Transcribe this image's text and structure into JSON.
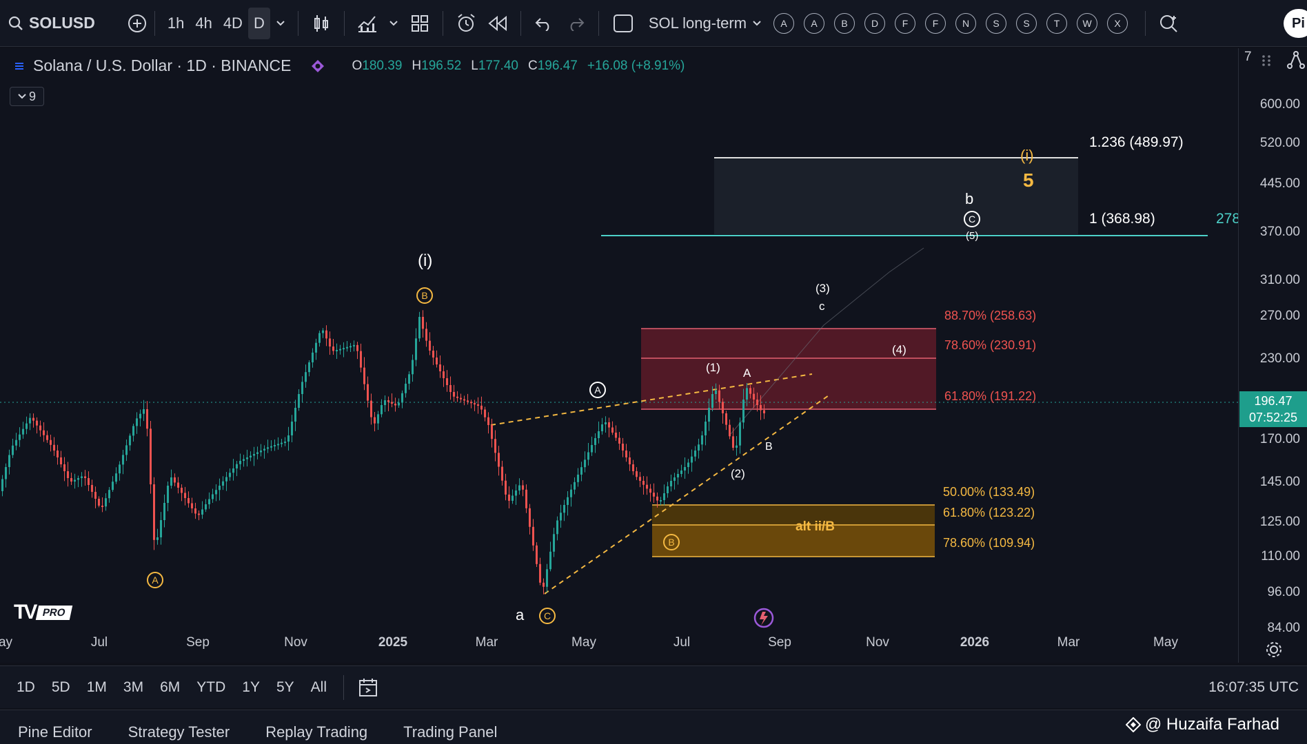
{
  "topbar": {
    "symbol": "SOLUSD",
    "timeframes": [
      "1h",
      "4h",
      "4D",
      "D"
    ],
    "active_timeframe": "D",
    "layout_name": "SOL long-term",
    "alert_letters": [
      "A",
      "A",
      "B",
      "D",
      "F",
      "F",
      "N",
      "S",
      "S",
      "T",
      "W",
      "X"
    ],
    "profile_initials": "Pi"
  },
  "legend": {
    "title": "Solana / U.S. Dollar · 1D · BINANCE",
    "open_label": "O",
    "open": "180.39",
    "high_label": "H",
    "high": "196.52",
    "low_label": "L",
    "low": "177.40",
    "close_label": "C",
    "close": "196.47",
    "change": "+16.08 (+8.91%)",
    "indicators_count": "9"
  },
  "price_scale": {
    "top_partial": "7",
    "labels": [
      "600.00",
      "520.00",
      "445.00",
      "370.00",
      "310.00",
      "270.00",
      "230.00",
      "170.00",
      "145.00",
      "125.00",
      "110.00",
      "96.00",
      "84.00"
    ],
    "current_price": "196.47",
    "countdown": "07:52:25"
  },
  "time_scale": {
    "labels": [
      "ay",
      "Jul",
      "Sep",
      "Nov",
      "2025",
      "Mar",
      "May",
      "Jul",
      "Sep",
      "Nov",
      "2026",
      "Mar",
      "May"
    ]
  },
  "fib_upper": {
    "level_1236": "1.236 (489.97)",
    "level_1": "1 (368.98)",
    "right_partial": "278"
  },
  "fib_red": {
    "l887": "88.70% (258.63)",
    "l786": "78.60% (230.91)",
    "l618": "61.80% (191.22)"
  },
  "fib_orange": {
    "l50": "50.00% (133.49)",
    "l618": "61.80% (123.22)",
    "l786": "78.60% (109.94)",
    "zone_label": "alt ii/B"
  },
  "wave_labels": {
    "i_top": "(i)",
    "b_circle_top": "B",
    "i_gold": "(i)",
    "five": "5",
    "b_small": "b",
    "c_circle": "C",
    "five_paren": "(5)",
    "three_paren": "(3)",
    "c_small": "c",
    "four_paren": "(4)",
    "one_paren": "(1)",
    "a_cap": "A",
    "a_circle_white": "A",
    "b_cap": "B",
    "two_paren": "(2)",
    "b_circle_low": "B",
    "a_circle_low": "A",
    "a_small": "a",
    "c_circle_low": "C"
  },
  "bottom_bar": {
    "ranges": [
      "1D",
      "5D",
      "1M",
      "3M",
      "6M",
      "YTD",
      "1Y",
      "5Y",
      "All"
    ],
    "clock": "16:07:35 UTC"
  },
  "panel_tabs": [
    "Pine Editor",
    "Strategy Tester",
    "Replay Trading",
    "Trading Panel"
  ],
  "watermark": "@ Huzaifa Farhad",
  "logo_badge": "PRO",
  "colors": {
    "bg": "#10131d",
    "up": "#26a69a",
    "down": "#ef5350",
    "fib_red_zone": "#7a2030",
    "fib_orange_zone": "#6b4a0c",
    "gold": "#f5b942",
    "teal_line": "#4dd0c8"
  }
}
